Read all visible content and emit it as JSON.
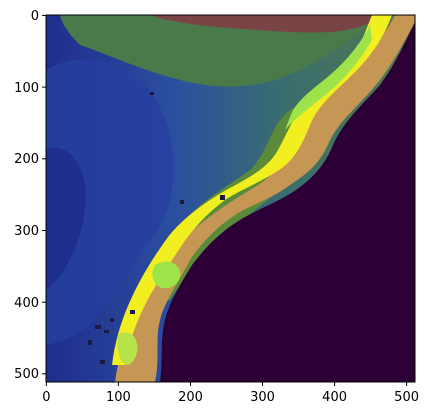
{
  "figure": {
    "x_ticks": [
      "0",
      "100",
      "200",
      "300",
      "400",
      "500"
    ],
    "y_ticks": [
      "0",
      "100",
      "200",
      "300",
      "400",
      "500"
    ],
    "x_range": [
      0,
      512
    ],
    "y_range": [
      512,
      0
    ],
    "colors": {
      "land_dark_blue": "#1f2d8c",
      "land_blue": "#2f5ea8",
      "land_green": "#3f7a52",
      "land_olive": "#5f7a3a",
      "land_red": "#8a2b3f",
      "coast_yellow": "#f2f21f",
      "coast_lime": "#9fe34a",
      "shelf_tan": "#c69654",
      "sea_purple": "#2c0037",
      "frame": "#000000"
    }
  }
}
